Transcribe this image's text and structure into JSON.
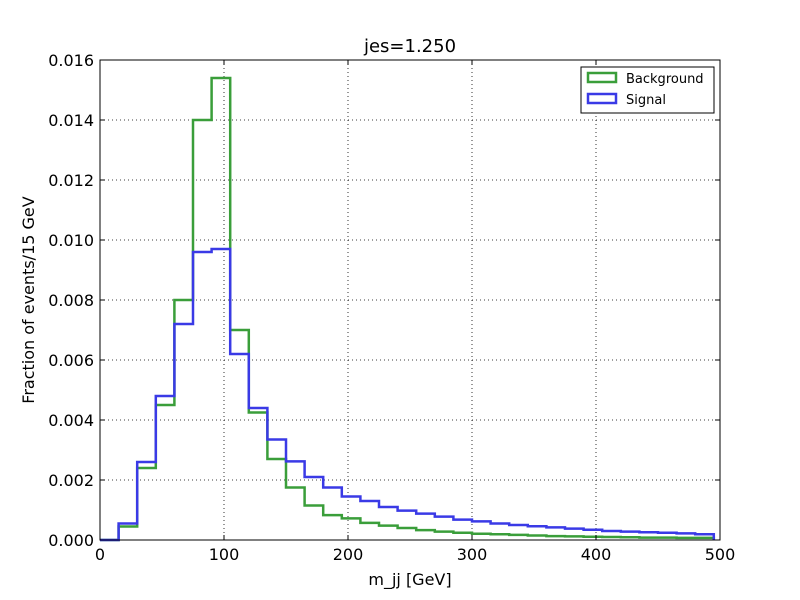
{
  "chart_data": {
    "type": "line",
    "style": "step-histogram",
    "title": "jes=1.250",
    "xlabel": "m_jj [GeV]",
    "ylabel": "Fraction of events/15 GeV",
    "xlim": [
      0,
      500
    ],
    "ylim": [
      0,
      0.016
    ],
    "grid": true,
    "legend_position": "top-right",
    "x_ticks": [
      "0",
      "100",
      "200",
      "300",
      "400",
      "500"
    ],
    "y_ticks": [
      "0.000",
      "0.002",
      "0.004",
      "0.006",
      "0.008",
      "0.010",
      "0.012",
      "0.014",
      "0.016"
    ],
    "bin_edges": [
      0,
      15,
      30,
      45,
      60,
      75,
      90,
      105,
      120,
      135,
      150,
      165,
      180,
      195,
      210,
      225,
      240,
      255,
      270,
      285,
      300,
      315,
      330,
      345,
      360,
      375,
      390,
      405,
      420,
      435,
      450,
      465,
      480,
      495
    ],
    "series": [
      {
        "name": "Background",
        "color": "#3a9e3a",
        "values": [
          0.0,
          0.00045,
          0.0024,
          0.0045,
          0.008,
          0.014,
          0.0154,
          0.007,
          0.00425,
          0.0027,
          0.00175,
          0.00115,
          0.00083,
          0.00072,
          0.00057,
          0.00048,
          0.0004,
          0.00033,
          0.00028,
          0.00024,
          0.00021,
          0.00019,
          0.00017,
          0.00015,
          0.00013,
          0.00012,
          0.00011,
          0.0001,
          9e-05,
          8e-05,
          8e-05,
          7e-05,
          7e-05
        ]
      },
      {
        "name": "Signal",
        "color": "#3a3ae6",
        "values": [
          0.0,
          0.00055,
          0.0026,
          0.0048,
          0.0072,
          0.0096,
          0.0097,
          0.0062,
          0.0044,
          0.00335,
          0.00262,
          0.0021,
          0.00175,
          0.00145,
          0.0013,
          0.0011,
          0.00098,
          0.00088,
          0.00078,
          0.00068,
          0.00062,
          0.00055,
          0.0005,
          0.00046,
          0.00042,
          0.00038,
          0.00034,
          0.0003,
          0.00028,
          0.00026,
          0.00024,
          0.00022,
          0.00019
        ]
      }
    ]
  }
}
